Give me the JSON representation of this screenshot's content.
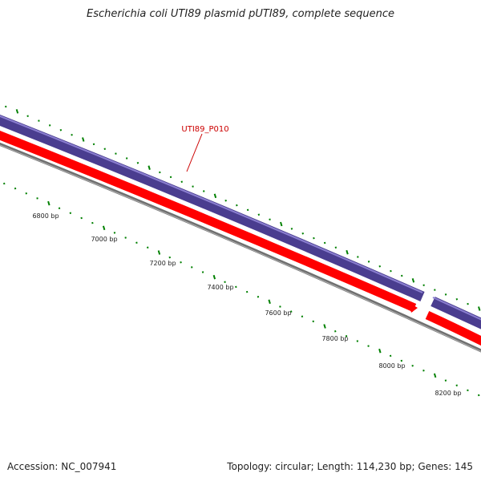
{
  "title": "Escherichia coli UTI89 plasmid pUTI89, complete sequence",
  "footer": {
    "accession": "Accession: NC_007941",
    "summary": "Topology: circular; Length: 114,230 bp; Genes: 145"
  },
  "scale_labels": [
    "6800 bp",
    "7000 bp",
    "7200 bp",
    "7400 bp",
    "7600 bp",
    "7800 bp",
    "8000 bp",
    "8200 bp"
  ],
  "gene_label": "UTI89_P010",
  "colors": {
    "backbone": "#808080",
    "forward_feature": "#4a3d8f",
    "forward_highlight": "#8b7fd0",
    "reverse_feature": "#ff0000",
    "label": "#cc0000",
    "ticks": "#008000"
  }
}
